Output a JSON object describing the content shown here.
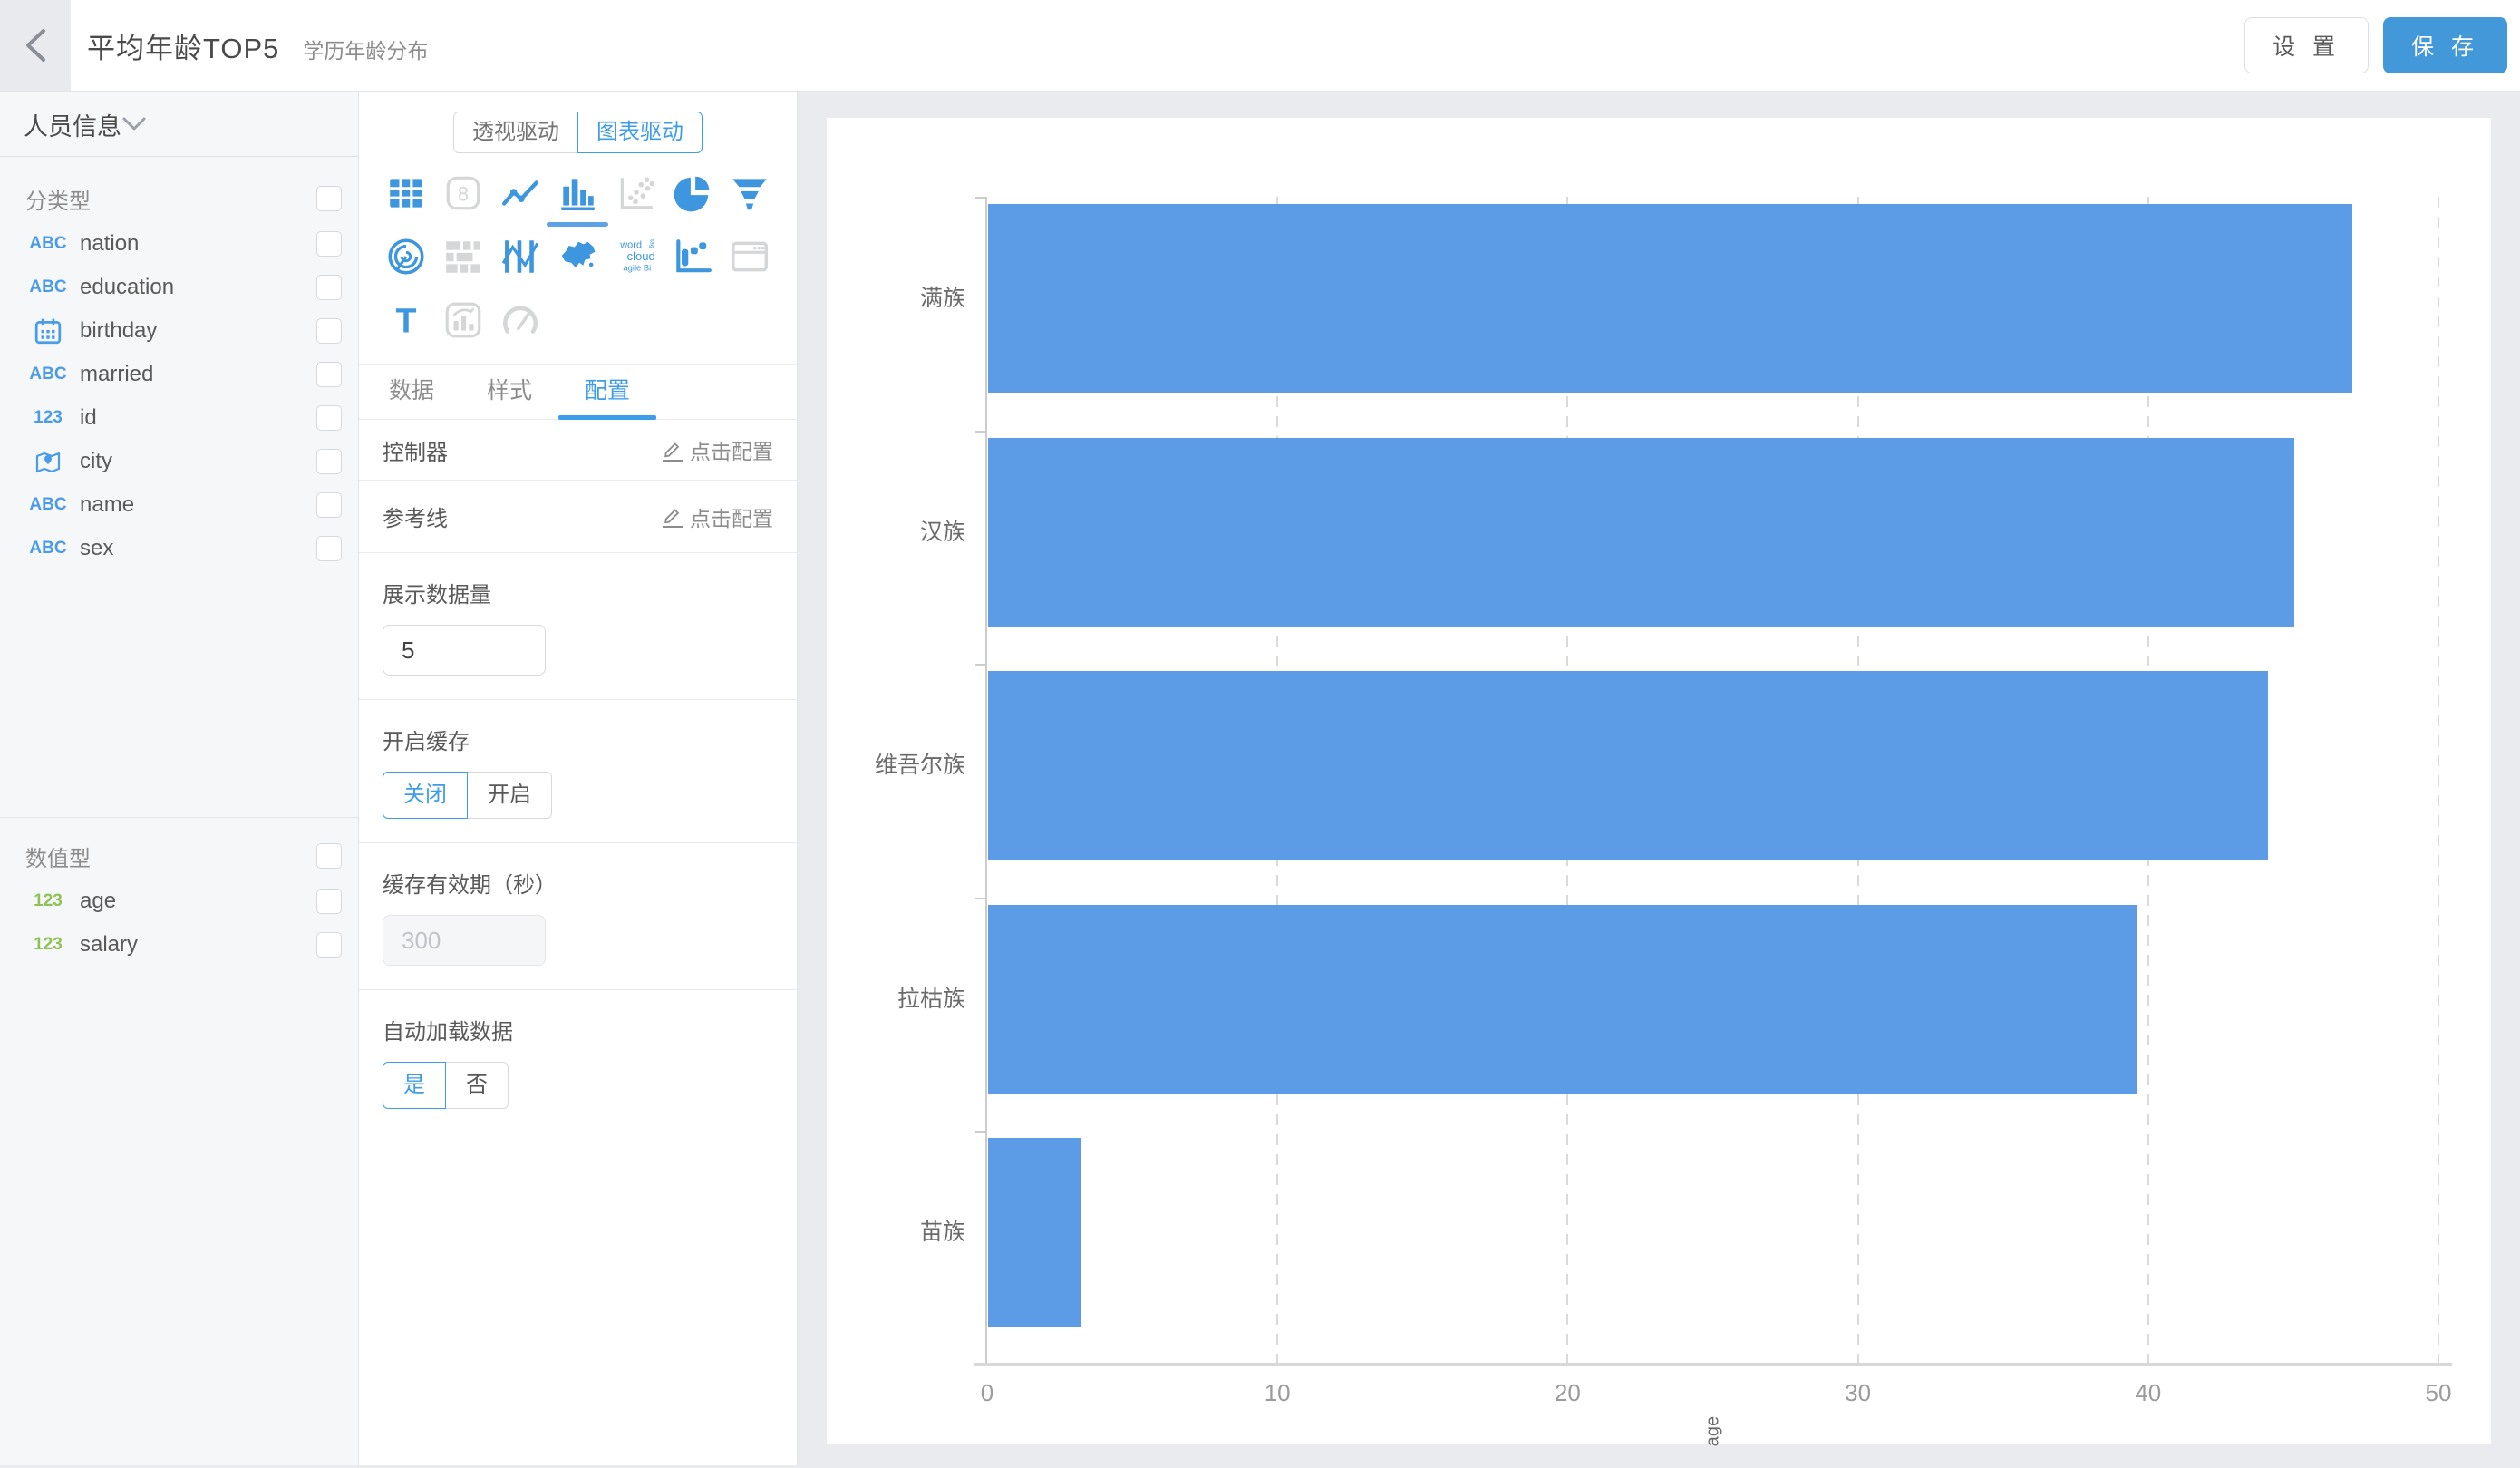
{
  "theme": {
    "accent": "#3d9de8",
    "save_button_color": "#4298d8",
    "bar_color": "#5c9ce6",
    "icon_active_color": "#3e97de",
    "icon_disabled_color": "#d4d6d8"
  },
  "header": {
    "back_icon": "chevron-left",
    "title": "平均年龄TOP5",
    "subtitle": "学历年龄分布",
    "settings_label": "设 置",
    "save_label": "保 存"
  },
  "sidebar": {
    "dataset_name": "人员信息",
    "collapse_icon": "chevron-down",
    "sections": [
      {
        "label": "分类型",
        "items": [
          {
            "icon": "abc",
            "label": "nation"
          },
          {
            "icon": "abc",
            "label": "education"
          },
          {
            "icon": "calendar",
            "label": "birthday"
          },
          {
            "icon": "abc",
            "label": "married"
          },
          {
            "icon": "123-blue",
            "label": "id"
          },
          {
            "icon": "map-pin",
            "label": "city"
          },
          {
            "icon": "abc",
            "label": "name"
          },
          {
            "icon": "abc",
            "label": "sex"
          }
        ]
      },
      {
        "label": "数值型",
        "items": [
          {
            "icon": "123-green",
            "label": "age"
          },
          {
            "icon": "123-green",
            "label": "salary"
          }
        ]
      }
    ]
  },
  "panel": {
    "mode_options": [
      {
        "label": "透视驱动",
        "selected": false
      },
      {
        "label": "图表驱动",
        "selected": true
      }
    ],
    "chart_type_rows": [
      [
        {
          "name": "table",
          "state": "active"
        },
        {
          "name": "number-card",
          "state": "disabled"
        },
        {
          "name": "line-chart",
          "state": "active"
        },
        {
          "name": "bar-chart",
          "state": "selected"
        },
        {
          "name": "scatter",
          "state": "disabled"
        },
        {
          "name": "pie-chart",
          "state": "active"
        },
        {
          "name": "funnel",
          "state": "active"
        }
      ],
      [
        {
          "name": "radar",
          "state": "active"
        },
        {
          "name": "gantt",
          "state": "disabled"
        },
        {
          "name": "parallel",
          "state": "active"
        },
        {
          "name": "china-map",
          "state": "active"
        },
        {
          "name": "word-cloud",
          "state": "active"
        },
        {
          "name": "step-chart",
          "state": "active"
        },
        {
          "name": "iframe",
          "state": "disabled"
        }
      ],
      [
        {
          "name": "text",
          "state": "active"
        },
        {
          "name": "combo-chart",
          "state": "disabled"
        },
        {
          "name": "gauge",
          "state": "disabled"
        }
      ]
    ],
    "tabs": [
      {
        "label": "数据",
        "selected": false
      },
      {
        "label": "样式",
        "selected": false
      },
      {
        "label": "配置",
        "selected": true
      }
    ],
    "config_links": [
      {
        "label": "控制器",
        "action": "点击配置"
      },
      {
        "label": "参考线",
        "action": "点击配置"
      }
    ],
    "display_count": {
      "label": "展示数据量",
      "value": "5"
    },
    "cache_toggle": {
      "label": "开启缓存",
      "options": [
        "关闭",
        "开启"
      ],
      "selected_index": 0
    },
    "cache_ttl": {
      "label": "缓存有效期（秒）",
      "value": "300",
      "disabled": true
    },
    "auto_load": {
      "label": "自动加载数据",
      "options": [
        "是",
        "否"
      ],
      "selected_index": 0
    }
  },
  "chart_data": {
    "type": "bar",
    "orientation": "horizontal",
    "categories": [
      "满族",
      "汉族",
      "维吾尔族",
      "拉枯族",
      "苗族"
    ],
    "values": [
      47,
      45,
      44.1,
      39.6,
      3.2
    ],
    "title": "",
    "xlabel": "age",
    "ylabel": "",
    "xlim": [
      0,
      50
    ],
    "x_ticks": [
      0,
      10,
      20,
      30,
      40,
      50
    ],
    "grid": "dashed-vertical",
    "legend": false,
    "bar_color": "#5c9ce6"
  }
}
